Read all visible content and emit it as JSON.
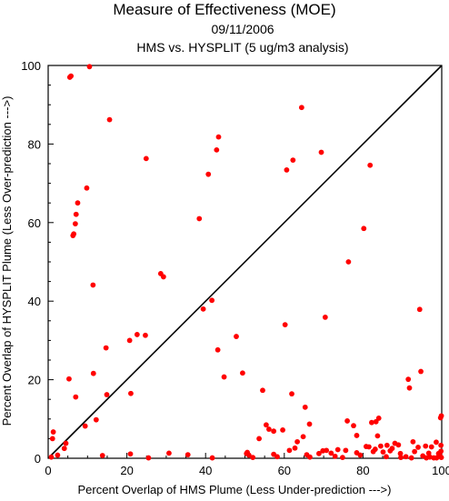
{
  "chart_data": {
    "type": "scatter",
    "title": "Measure of Effectiveness (MOE)",
    "subtitle_date": "09/11/2006",
    "subtitle_analysis": "HMS vs. HYSPLIT  (5 ug/m3 analysis)",
    "xlabel": "Percent Overlap of HMS Plume (Less Under-prediction --->)",
    "ylabel": "Percent Overlap of HYSPLIT Plume (Less Over-prediction --->)",
    "xlim": [
      0,
      100
    ],
    "ylim": [
      0,
      100
    ],
    "xticks": [
      "0",
      "20",
      "40",
      "60",
      "80",
      "100"
    ],
    "yticks": [
      "0",
      "20",
      "40",
      "60",
      "80",
      "100"
    ],
    "reference_line": "y = x",
    "grid": false,
    "marker_color": "#ff0000",
    "points": [
      [
        10.5,
        99.7
      ],
      [
        5.8,
        97.3
      ],
      [
        5.5,
        97.0
      ],
      [
        15.6,
        86.2
      ],
      [
        24.9,
        76.3
      ],
      [
        7.5,
        65.0
      ],
      [
        7.1,
        62.1
      ],
      [
        6.9,
        59.7
      ],
      [
        6.5,
        57.1
      ],
      [
        6.3,
        56.7
      ],
      [
        9.8,
        68.8
      ],
      [
        11.4,
        44.1
      ],
      [
        28.6,
        47.0
      ],
      [
        29.3,
        46.2
      ],
      [
        38.4,
        61.0
      ],
      [
        40.7,
        72.3
      ],
      [
        42.8,
        78.5
      ],
      [
        43.3,
        81.8
      ],
      [
        11.5,
        21.6
      ],
      [
        14.7,
        28.1
      ],
      [
        14.9,
        16.2
      ],
      [
        5.3,
        20.2
      ],
      [
        7.0,
        15.6
      ],
      [
        9.4,
        8.2
      ],
      [
        12.2,
        9.8
      ],
      [
        4.5,
        3.8
      ],
      [
        4.1,
        2.5
      ],
      [
        1.1,
        5.0
      ],
      [
        1.3,
        6.7
      ],
      [
        0.8,
        0.3
      ],
      [
        20.7,
        30.0
      ],
      [
        22.6,
        31.5
      ],
      [
        24.7,
        31.3
      ],
      [
        21.0,
        16.5
      ],
      [
        39.4,
        38.0
      ],
      [
        41.6,
        40.2
      ],
      [
        43.1,
        27.6
      ],
      [
        44.7,
        20.7
      ],
      [
        47.8,
        31.0
      ],
      [
        49.4,
        21.7
      ],
      [
        50.4,
        1.2
      ],
      [
        51.0,
        0.8
      ],
      [
        56.1,
        7.4
      ],
      [
        57.3,
        6.9
      ],
      [
        59.6,
        7.2
      ],
      [
        54.5,
        17.3
      ],
      [
        55.4,
        8.5
      ],
      [
        60.2,
        34.0
      ],
      [
        60.6,
        73.4
      ],
      [
        62.2,
        75.9
      ],
      [
        64.4,
        89.3
      ],
      [
        69.4,
        77.9
      ],
      [
        70.4,
        35.9
      ],
      [
        61.3,
        2.0
      ],
      [
        61.9,
        16.4
      ],
      [
        62.7,
        2.6
      ],
      [
        63.3,
        4.2
      ],
      [
        64.8,
        5.5
      ],
      [
        65.3,
        13.0
      ],
      [
        66.4,
        8.7
      ],
      [
        65.7,
        0.9
      ],
      [
        68.8,
        1.2
      ],
      [
        70.7,
        2.0
      ],
      [
        71.9,
        1.3
      ],
      [
        72.9,
        0.5
      ],
      [
        74.8,
        0.2
      ],
      [
        76.0,
        9.5
      ],
      [
        76.3,
        50.0
      ],
      [
        77.6,
        8.3
      ],
      [
        78.4,
        5.8
      ],
      [
        79.3,
        0.8
      ],
      [
        80.2,
        58.5
      ],
      [
        80.8,
        3.0
      ],
      [
        81.8,
        74.6
      ],
      [
        82.2,
        9.1
      ],
      [
        82.6,
        1.7
      ],
      [
        83.3,
        9.3
      ],
      [
        83.7,
        5.7
      ],
      [
        84.0,
        10.2
      ],
      [
        84.5,
        3.1
      ],
      [
        85.1,
        1.6
      ],
      [
        85.9,
        0.4
      ],
      [
        86.9,
        1.9
      ],
      [
        87.4,
        2.5
      ],
      [
        88.1,
        3.8
      ],
      [
        89.0,
        3.4
      ],
      [
        89.6,
        0.2
      ],
      [
        90.9,
        0.4
      ],
      [
        91.5,
        20.1
      ],
      [
        91.8,
        17.9
      ],
      [
        92.7,
        4.2
      ],
      [
        93.1,
        1.7
      ],
      [
        94.0,
        2.8
      ],
      [
        94.4,
        37.9
      ],
      [
        94.7,
        22.1
      ],
      [
        95.2,
        0.6
      ],
      [
        95.9,
        3.1
      ],
      [
        96.7,
        1.3
      ],
      [
        97.4,
        2.9
      ],
      [
        98.0,
        0.1
      ],
      [
        98.6,
        4.1
      ],
      [
        99.2,
        1.2
      ],
      [
        99.7,
        10.3
      ],
      [
        99.9,
        10.8
      ],
      [
        99.8,
        3.3
      ],
      [
        99.5,
        0.7
      ],
      [
        99.9,
        0.2
      ],
      [
        2.4,
        0.8
      ],
      [
        13.8,
        0.7
      ],
      [
        20.9,
        1.1
      ],
      [
        25.5,
        0.1
      ],
      [
        30.7,
        1.3
      ],
      [
        35.5,
        0.9
      ],
      [
        41.7,
        0.1
      ],
      [
        50.6,
        1.5
      ],
      [
        57.3,
        1.0
      ],
      [
        69.8,
        1.9
      ],
      [
        75.6,
        2.0
      ],
      [
        83.1,
        2.3
      ],
      [
        89.5,
        1.2
      ],
      [
        52.0,
        0.2
      ],
      [
        53.6,
        5.0
      ],
      [
        58.2,
        0.4
      ],
      [
        66.5,
        0.3
      ],
      [
        73.6,
        2.2
      ],
      [
        78.4,
        1.4
      ],
      [
        81.5,
        2.9
      ],
      [
        86.1,
        3.3
      ],
      [
        92.3,
        0.1
      ],
      [
        96.1,
        0.1
      ],
      [
        98.7,
        0.1
      ],
      [
        97.0,
        0.3
      ],
      [
        99.8,
        1.8
      ]
    ]
  }
}
